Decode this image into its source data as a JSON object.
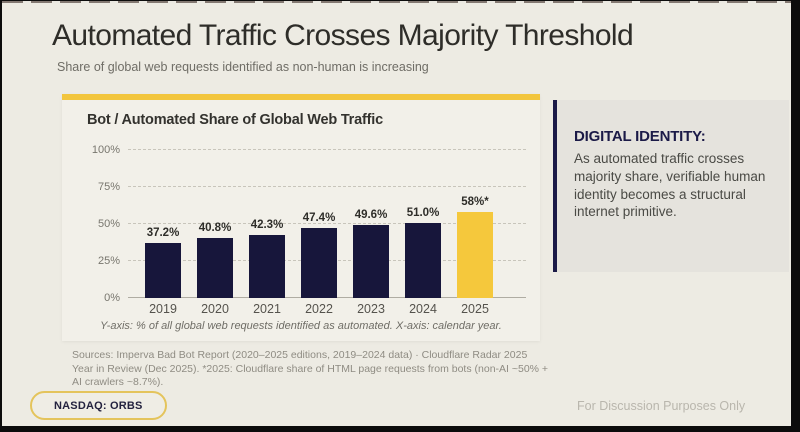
{
  "header": {
    "title": "Automated Traffic Crosses Majority Threshold",
    "subtitle": "Share of global web requests identified as non-human is increasing"
  },
  "chart_data": {
    "type": "bar",
    "title": "Bot / Automated Share of Global Web Traffic",
    "categories": [
      "2019",
      "2020",
      "2021",
      "2022",
      "2023",
      "2024",
      "2025"
    ],
    "values": [
      37.2,
      40.8,
      42.3,
      47.4,
      49.6,
      51.0,
      58
    ],
    "value_labels": [
      "37.2%",
      "40.8%",
      "42.3%",
      "47.4%",
      "49.6%",
      "51.0%",
      "58%*"
    ],
    "yticks": [
      0,
      25,
      50,
      75,
      100
    ],
    "ytick_labels": [
      "0%",
      "25%",
      "50%",
      "75%",
      "100%"
    ],
    "ylim": [
      0,
      100
    ],
    "ylabel": "% of all global web requests identified as automated",
    "xlabel": "calendar year",
    "grid": "horizontal dashed",
    "legend": "none",
    "highlight_index": 6,
    "bar_color": "#17163b",
    "highlight_color": "#f5c83c",
    "caption": "Y-axis: % of all global web requests identified as automated.  X-axis: calendar year."
  },
  "sources": "Sources: Imperva Bad Bot Report (2020–2025 editions, 2019–2024 data) · Cloudflare Radar 2025 Year in Review (Dec 2025).  *2025: Cloudflare share of HTML page requests from bots (non-AI ~50% + AI crawlers ~8.7%).",
  "insight_panel": {
    "heading": "DIGITAL IDENTITY:",
    "body": "As automated traffic crosses majority share, verifiable human identity becomes a structural internet primitive."
  },
  "footer": {
    "ticker": "NASDAQ: ORBS",
    "disclaimer": "For Discussion Purposes Only"
  },
  "colors": {
    "background": "#edebe3",
    "card_background": "#f2f0e9",
    "accent_yellow": "#f2c53d",
    "navy": "#17163b",
    "panel_background": "#e5e3dd"
  }
}
